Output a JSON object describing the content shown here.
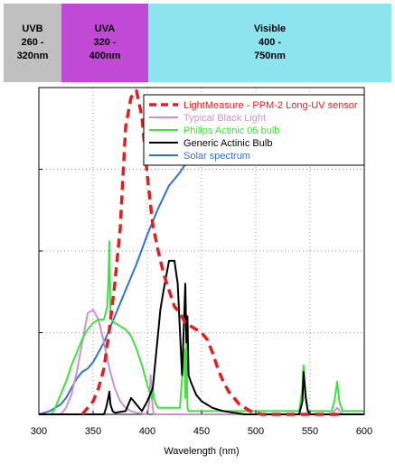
{
  "bands": [
    {
      "label": "UVB",
      "range": "260 -",
      "range2": "320nm",
      "color": "#c0c0c0"
    },
    {
      "label": "UVA",
      "range": "320 -",
      "range2": "400nm",
      "color": "#c04ad6"
    },
    {
      "label": "Visible",
      "range": "400 -",
      "range2": "750nm",
      "color": "#8ee4ee"
    }
  ],
  "chart_data": {
    "type": "line",
    "xlabel": "Wavelength (nm)",
    "ylabel": "",
    "title": "",
    "xlim": [
      300,
      600
    ],
    "xticks": [
      300,
      350,
      400,
      450,
      500,
      550,
      600
    ],
    "ylim": [
      0,
      100
    ],
    "grid": true,
    "legend_position": "top-right",
    "series": [
      {
        "name": "LightMeasure - PPM-2 Long-UV sensor",
        "color": "#e02020",
        "style": "dashed",
        "x": [
          340,
          345,
          350,
          355,
          360,
          365,
          370,
          375,
          380,
          385,
          390,
          395,
          400,
          405,
          410,
          415,
          420,
          425,
          430,
          435,
          440,
          445,
          450,
          455,
          460,
          465,
          470,
          475,
          480,
          485,
          490,
          495,
          500,
          505,
          510,
          520,
          530,
          540,
          550,
          560,
          570,
          580
        ],
        "y": [
          0,
          2,
          4,
          8,
          14,
          26,
          40,
          57,
          88,
          97,
          99,
          91,
          73,
          58,
          50,
          43,
          38,
          33,
          31,
          28,
          27,
          26,
          25,
          23,
          19,
          14,
          10,
          7,
          5,
          3,
          2,
          1,
          0.5,
          0,
          0,
          0,
          0,
          0,
          0,
          0,
          0,
          0
        ]
      },
      {
        "name": "Typical Black Light",
        "color": "#d090d0",
        "style": "solid",
        "x": [
          300,
          315,
          320,
          325,
          330,
          335,
          340,
          345,
          350,
          355,
          360,
          365,
          370,
          375,
          380,
          385,
          390,
          395,
          400,
          402,
          403,
          404,
          405,
          406,
          408,
          420,
          425,
          430,
          440,
          450,
          500,
          540,
          550,
          560,
          570,
          575,
          580,
          590,
          600
        ],
        "y": [
          0,
          0,
          0,
          2,
          6,
          13,
          22,
          31,
          32,
          29,
          22,
          14,
          8,
          4,
          2,
          1,
          0.5,
          0.3,
          0,
          4,
          12,
          6,
          2,
          0,
          0,
          0,
          0,
          0,
          0,
          0,
          0,
          0,
          0,
          0,
          0,
          2,
          0,
          0,
          0
        ]
      },
      {
        "name": "Philips Actinic 05 bulb",
        "color": "#40e040",
        "style": "solid",
        "x": [
          300,
          312,
          315,
          320,
          325,
          330,
          335,
          340,
          345,
          350,
          355,
          360,
          363,
          364,
          365,
          366,
          367,
          370,
          375,
          380,
          385,
          390,
          395,
          400,
          402,
          404,
          405,
          406,
          408,
          410,
          420,
          430,
          434,
          435,
          436,
          437,
          438,
          440,
          450,
          500,
          540,
          543,
          544,
          546,
          548,
          550,
          560,
          570,
          573,
          575,
          577,
          580,
          590,
          600
        ],
        "y": [
          0,
          0,
          2,
          6,
          10,
          15,
          19,
          23,
          26,
          28,
          29,
          29,
          33,
          40,
          53,
          30,
          29,
          28,
          27,
          26,
          24,
          20,
          15,
          9,
          7,
          5,
          8,
          5,
          3,
          2,
          2,
          2,
          20,
          5,
          22,
          2,
          1,
          1,
          1,
          1,
          1,
          8,
          15,
          6,
          1,
          1,
          1,
          1,
          5,
          10,
          4,
          1,
          1,
          1
        ]
      },
      {
        "name": "Generic Actinic Bulb",
        "color": "#000000",
        "style": "solid",
        "x": [
          300,
          360,
          362,
          364,
          365,
          366,
          368,
          370,
          380,
          385,
          390,
          395,
          400,
          405,
          410,
          412,
          415,
          420,
          425,
          428,
          430,
          432,
          434,
          435,
          436,
          437,
          438,
          440,
          445,
          450,
          455,
          460,
          470,
          480,
          490,
          500,
          540,
          543,
          544,
          545,
          546,
          548,
          550,
          600
        ],
        "y": [
          0,
          0,
          2,
          5,
          7,
          3,
          1,
          0.5,
          1,
          5,
          3,
          1,
          4,
          8,
          25,
          32,
          38,
          47,
          47,
          40,
          26,
          12,
          30,
          40,
          22,
          30,
          12,
          10,
          6,
          4,
          3,
          2,
          1,
          0.5,
          0,
          0,
          0,
          4,
          13,
          9,
          5,
          1,
          0,
          0
        ]
      },
      {
        "name": "Solar spectrum",
        "color": "#3070d8",
        "style": "solid",
        "x": [
          300,
          305,
          310,
          315,
          320,
          325,
          330,
          335,
          340,
          345,
          350,
          360,
          370,
          380,
          390,
          400,
          410,
          420,
          430,
          440,
          450,
          460,
          470,
          480,
          490,
          500,
          510,
          515,
          520,
          530,
          540,
          550,
          560,
          570,
          580,
          590,
          600
        ],
        "y": [
          0,
          0.5,
          1,
          2,
          3,
          5,
          8,
          11,
          13,
          14,
          16,
          22,
          30,
          38,
          46,
          55,
          63,
          70,
          74,
          79,
          83,
          85,
          87,
          88,
          89,
          89,
          89,
          89,
          89,
          89,
          88,
          87,
          86,
          85,
          84,
          83,
          82
        ]
      }
    ]
  }
}
